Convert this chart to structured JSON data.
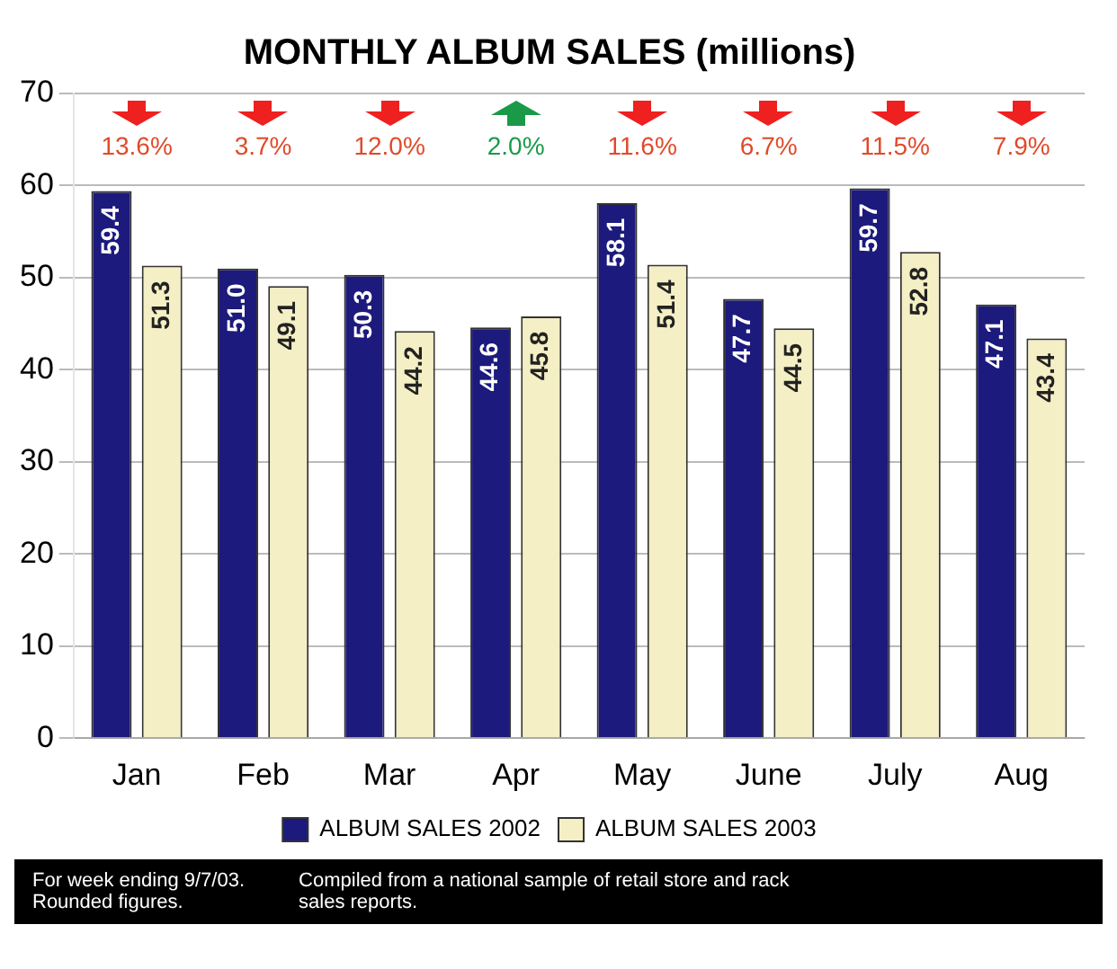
{
  "chart_data": {
    "type": "bar",
    "title": "MONTHLY ALBUM SALES (millions)",
    "categories": [
      "Jan",
      "Feb",
      "Mar",
      "Apr",
      "May",
      "June",
      "July",
      "Aug"
    ],
    "series": [
      {
        "name": "ALBUM SALES 2002",
        "color": "#1c1a7c",
        "values": [
          59.4,
          51.0,
          50.3,
          44.6,
          58.1,
          47.7,
          59.7,
          47.1
        ],
        "value_labels": [
          "59.4",
          "51.0",
          "50.3",
          "44.6",
          "58.1",
          "47.7",
          "59.7",
          "47.1"
        ]
      },
      {
        "name": "ALBUM SALES 2003",
        "color": "#f4efc4",
        "values": [
          51.3,
          49.1,
          44.2,
          45.8,
          51.4,
          44.5,
          52.8,
          43.4
        ],
        "value_labels": [
          "51.3",
          "49.1",
          "44.2",
          "45.8",
          "51.4",
          "44.5",
          "52.8",
          "43.4"
        ]
      }
    ],
    "ylim": [
      0,
      70
    ],
    "yticks": [
      0,
      10,
      20,
      30,
      40,
      50,
      60,
      70
    ],
    "grid": "y",
    "legend": "bottom",
    "annotations": [
      "13.6%",
      "3.7%",
      "12.0%",
      "2.0%",
      "11.6%",
      "6.7%",
      "11.5%",
      "7.9%",
      "For week ending 9/7/03.",
      "Rounded figures.",
      "Compiled from a national sample of retail store and rack sales reports."
    ]
  }
}
